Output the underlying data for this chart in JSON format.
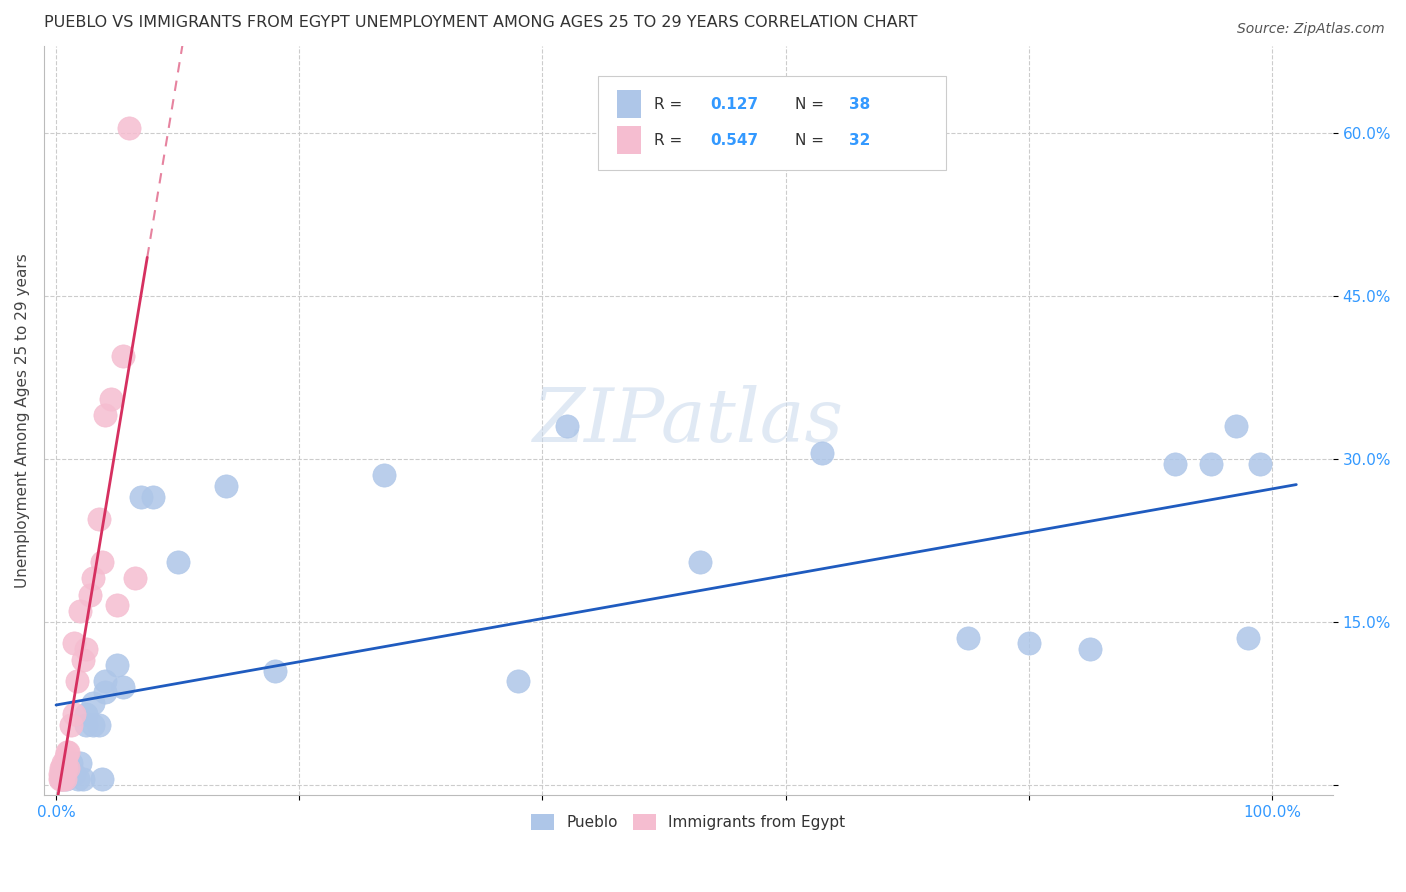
{
  "title": "PUEBLO VS IMMIGRANTS FROM EGYPT UNEMPLOYMENT AMONG AGES 25 TO 29 YEARS CORRELATION CHART",
  "source": "Source: ZipAtlas.com",
  "ylabel": "Unemployment Among Ages 25 to 29 years",
  "xlim": [
    -0.01,
    1.05
  ],
  "ylim": [
    -0.01,
    0.68
  ],
  "x_ticks": [
    0.0,
    0.2,
    0.4,
    0.6,
    0.8,
    1.0
  ],
  "x_tick_labels": [
    "0.0%",
    "",
    "",
    "",
    "",
    "100.0%"
  ],
  "y_ticks": [
    0.0,
    0.15,
    0.3,
    0.45,
    0.6
  ],
  "y_tick_labels": [
    "",
    "15.0%",
    "30.0%",
    "45.0%",
    "60.0%"
  ],
  "legend_label1": "Pueblo",
  "legend_label2": "Immigrants from Egypt",
  "blue_color": "#aec6e8",
  "pink_color": "#f5bdd0",
  "blue_line_color": "#1f5bbf",
  "pink_line_color": "#d63060",
  "axis_color": "#3399ff",
  "watermark": "ZIPatlas",
  "pueblo_x": [
    0.005,
    0.005,
    0.008,
    0.008,
    0.01,
    0.012,
    0.015,
    0.018,
    0.02,
    0.022,
    0.025,
    0.025,
    0.03,
    0.03,
    0.035,
    0.038,
    0.04,
    0.04,
    0.05,
    0.055,
    0.07,
    0.08,
    0.1,
    0.14,
    0.18,
    0.27,
    0.38,
    0.42,
    0.53,
    0.63,
    0.75,
    0.8,
    0.85,
    0.92,
    0.95,
    0.97,
    0.98,
    0.99
  ],
  "pueblo_y": [
    0.005,
    0.01,
    0.015,
    0.005,
    0.015,
    0.02,
    0.01,
    0.005,
    0.02,
    0.005,
    0.055,
    0.065,
    0.075,
    0.055,
    0.055,
    0.005,
    0.085,
    0.095,
    0.11,
    0.09,
    0.265,
    0.265,
    0.205,
    0.275,
    0.105,
    0.285,
    0.095,
    0.33,
    0.205,
    0.305,
    0.135,
    0.13,
    0.125,
    0.295,
    0.295,
    0.33,
    0.135,
    0.295
  ],
  "egypt_x": [
    0.003,
    0.003,
    0.004,
    0.004,
    0.005,
    0.005,
    0.006,
    0.006,
    0.007,
    0.007,
    0.008,
    0.008,
    0.009,
    0.01,
    0.01,
    0.012,
    0.015,
    0.015,
    0.017,
    0.02,
    0.022,
    0.025,
    0.028,
    0.03,
    0.035,
    0.038,
    0.04,
    0.045,
    0.05,
    0.055,
    0.06,
    0.065
  ],
  "egypt_y": [
    0.005,
    0.01,
    0.015,
    0.005,
    0.01,
    0.015,
    0.005,
    0.02,
    0.005,
    0.02,
    0.015,
    0.025,
    0.03,
    0.015,
    0.03,
    0.055,
    0.065,
    0.13,
    0.095,
    0.16,
    0.115,
    0.125,
    0.175,
    0.19,
    0.245,
    0.205,
    0.34,
    0.355,
    0.165,
    0.395,
    0.605,
    0.19
  ]
}
